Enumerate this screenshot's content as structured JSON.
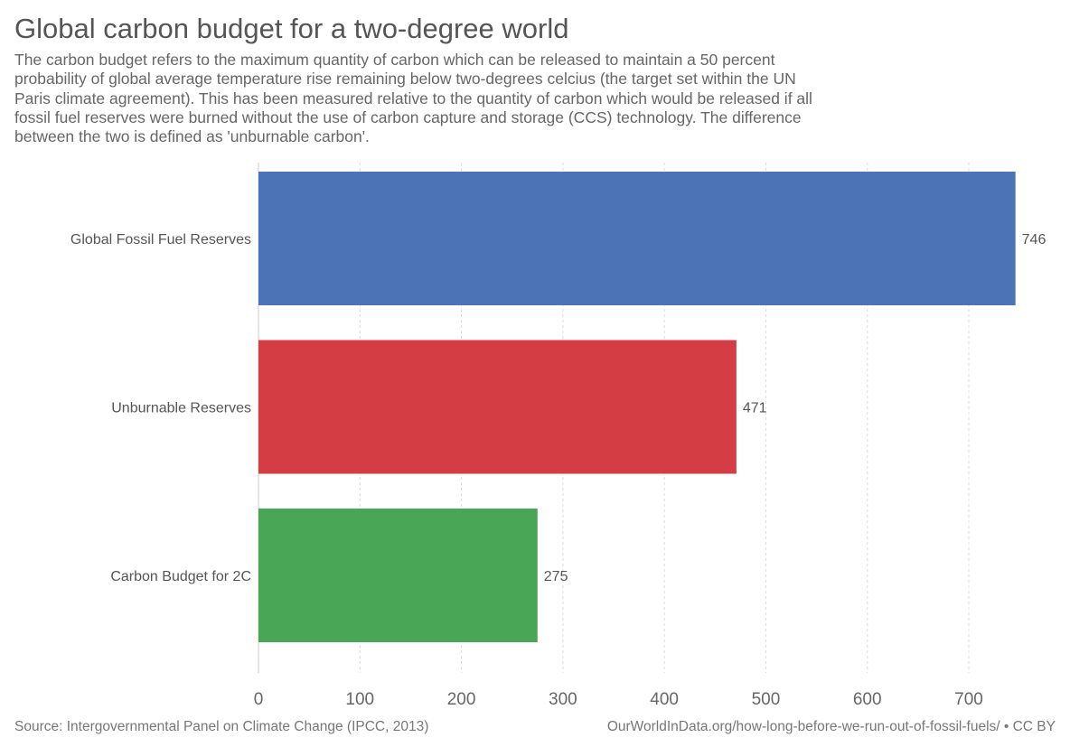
{
  "title": "Global carbon budget for a two-degree world",
  "subtitle_lines": [
    "The carbon budget refers to the maximum quantity of carbon which can be released to maintain a 50 percent",
    "probability of global average temperature rise remaining below two-degrees celcius (the target set within the UN",
    "Paris climate agreement). This has been measured relative to the quantity of carbon which would be released if all",
    "fossil fuel reserves were burned without the use of carbon capture and storage (CCS) technology. The difference",
    "between the two is defined as 'unburnable carbon'."
  ],
  "footer": {
    "source": "Source: Intergovernmental Panel on Climate Change (IPCC, 2013)",
    "url": "OurWorldInData.org/how-long-before-we-run-out-of-fossil-fuels/ • CC BY"
  },
  "chart_data": {
    "type": "bar",
    "orientation": "horizontal",
    "categories": [
      "Global Fossil Fuel Reserves",
      "Unburnable Reserves",
      "Carbon Budget for 2C"
    ],
    "values": [
      746,
      471,
      275
    ],
    "colors": [
      "#4b73b6",
      "#d53d44",
      "#4aa657"
    ],
    "xlim": [
      0,
      750
    ],
    "xticks": [
      0,
      100,
      200,
      300,
      400,
      500,
      600,
      700
    ],
    "grid": "vertical dashed",
    "xlabel": "",
    "ylabel": ""
  }
}
